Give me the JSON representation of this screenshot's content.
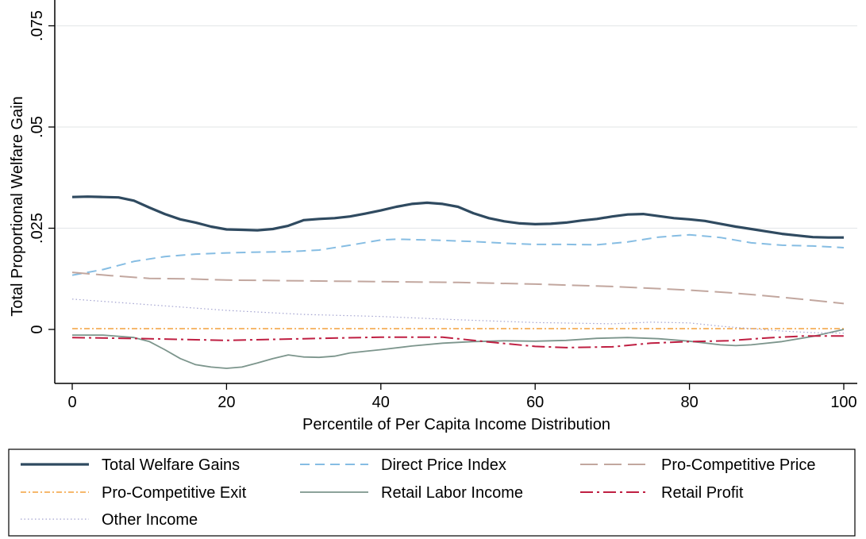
{
  "chart_data": {
    "type": "line",
    "title": "",
    "xlabel": "Percentile of Per Capita Income Distribution",
    "ylabel": "Total Proportional Welfare Gain",
    "xlim": [
      0,
      100
    ],
    "ylim": [
      -0.013,
      0.075
    ],
    "x_ticks": [
      0,
      20,
      40,
      60,
      80,
      100
    ],
    "x_tick_labels": [
      "0",
      "20",
      "40",
      "60",
      "80",
      "100"
    ],
    "y_ticks": [
      0,
      0.025,
      0.05,
      0.075
    ],
    "y_tick_labels": [
      "0",
      ".025",
      ".05",
      ".075"
    ],
    "grid": "horizontal",
    "legend_position": "bottom",
    "series": [
      {
        "name": "Total Welfare Gains",
        "color": "#2f4a60",
        "style": "solid-thick",
        "x": [
          0,
          2,
          4,
          6,
          8,
          10,
          12,
          14,
          16,
          18,
          20,
          22,
          24,
          26,
          28,
          30,
          32,
          34,
          36,
          38,
          40,
          42,
          44,
          46,
          48,
          50,
          52,
          54,
          56,
          58,
          60,
          62,
          64,
          66,
          68,
          70,
          72,
          74,
          76,
          78,
          80,
          82,
          84,
          86,
          88,
          90,
          92,
          94,
          96,
          98,
          100
        ],
        "values": [
          0.0327,
          0.0328,
          0.0327,
          0.0326,
          0.0318,
          0.0301,
          0.0285,
          0.0272,
          0.0264,
          0.0254,
          0.0247,
          0.0246,
          0.0245,
          0.0248,
          0.0256,
          0.027,
          0.0273,
          0.0275,
          0.0279,
          0.0286,
          0.0294,
          0.0303,
          0.031,
          0.0313,
          0.031,
          0.0303,
          0.0287,
          0.0275,
          0.0267,
          0.0262,
          0.026,
          0.0261,
          0.0264,
          0.0269,
          0.0273,
          0.0279,
          0.0284,
          0.0285,
          0.028,
          0.0275,
          0.0272,
          0.0268,
          0.0261,
          0.0254,
          0.0248,
          0.0242,
          0.0236,
          0.0232,
          0.0228,
          0.0227,
          0.0227
        ]
      },
      {
        "name": "Direct Price Index",
        "color": "#86bde3",
        "style": "dashed",
        "x": [
          0,
          4,
          8,
          12,
          16,
          20,
          24,
          28,
          32,
          36,
          40,
          42,
          44,
          48,
          52,
          56,
          60,
          64,
          68,
          72,
          76,
          80,
          84,
          88,
          92,
          96,
          100
        ],
        "values": [
          0.0134,
          0.0148,
          0.0168,
          0.018,
          0.0186,
          0.0189,
          0.0191,
          0.0192,
          0.0196,
          0.0208,
          0.0221,
          0.0223,
          0.0222,
          0.022,
          0.0217,
          0.0213,
          0.021,
          0.021,
          0.0209,
          0.0216,
          0.0228,
          0.0234,
          0.0227,
          0.0214,
          0.0208,
          0.0206,
          0.0202
        ]
      },
      {
        "name": "Pro-Competitive Price",
        "color": "#c2a79f",
        "style": "long-dash",
        "x": [
          0,
          5,
          10,
          15,
          20,
          25,
          30,
          40,
          50,
          60,
          70,
          80,
          85,
          90,
          95,
          100
        ],
        "values": [
          0.0141,
          0.0133,
          0.0126,
          0.0125,
          0.0122,
          0.0121,
          0.012,
          0.0118,
          0.0116,
          0.0112,
          0.0106,
          0.0097,
          0.0091,
          0.0083,
          0.0074,
          0.0064
        ]
      },
      {
        "name": "Pro-Competitive Exit",
        "color": "#f4a03d",
        "style": "dash-dot",
        "x": [
          0,
          100
        ],
        "values": [
          0.0002,
          0.0002
        ]
      },
      {
        "name": "Retail Labor Income",
        "color": "#7c958c",
        "style": "solid",
        "x": [
          0,
          4,
          8,
          10,
          12,
          14,
          16,
          18,
          20,
          22,
          24,
          26,
          28,
          30,
          32,
          34,
          36,
          38,
          40,
          44,
          48,
          52,
          56,
          60,
          64,
          68,
          72,
          76,
          80,
          84,
          86,
          88,
          92,
          96,
          100
        ],
        "values": [
          -0.0014,
          -0.0014,
          -0.002,
          -0.003,
          -0.005,
          -0.0072,
          -0.0087,
          -0.0093,
          -0.0096,
          -0.0093,
          -0.0083,
          -0.0072,
          -0.0063,
          -0.0068,
          -0.0069,
          -0.0066,
          -0.0058,
          -0.0054,
          -0.005,
          -0.0041,
          -0.0034,
          -0.003,
          -0.0028,
          -0.0029,
          -0.0027,
          -0.0022,
          -0.002,
          -0.0023,
          -0.0029,
          -0.0038,
          -0.004,
          -0.0038,
          -0.003,
          -0.0017,
          0.0
        ]
      },
      {
        "name": "Retail Profit",
        "color": "#bf1f42",
        "style": "long-dash-dot",
        "x": [
          0,
          10,
          20,
          30,
          40,
          48,
          55,
          60,
          64,
          70,
          75,
          80,
          85,
          90,
          95,
          100
        ],
        "values": [
          -0.002,
          -0.0023,
          -0.0027,
          -0.0023,
          -0.0019,
          -0.0019,
          -0.0033,
          -0.0042,
          -0.0045,
          -0.0043,
          -0.0034,
          -0.003,
          -0.0028,
          -0.0021,
          -0.0016,
          -0.0016
        ]
      },
      {
        "name": "Other Income",
        "color": "#a3a3d0",
        "style": "dotted",
        "x": [
          0,
          10,
          20,
          30,
          40,
          50,
          60,
          70,
          75,
          80,
          84,
          88,
          92,
          96,
          100
        ],
        "values": [
          0.0075,
          0.0061,
          0.0047,
          0.0037,
          0.0032,
          0.0024,
          0.0017,
          0.0014,
          0.0018,
          0.0016,
          0.0008,
          0.0002,
          -0.0004,
          -0.0008,
          -0.0009
        ]
      }
    ]
  }
}
